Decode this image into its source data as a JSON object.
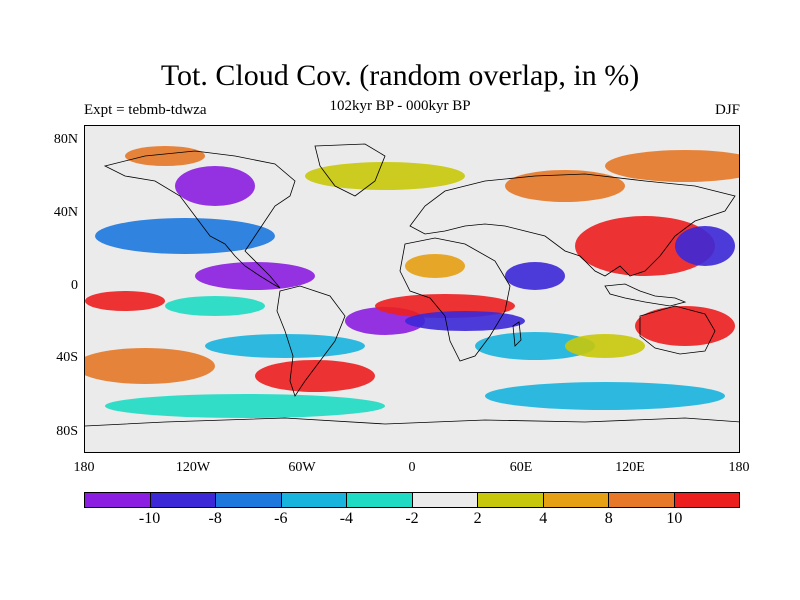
{
  "title": "Tot. Cloud Cov. (random overlap, in %)",
  "subtitle_left": "Expt = tebmb-tdwza",
  "subtitle_center": "102kyr BP - 000kyr BP",
  "subtitle_right": "DJF",
  "lat_labels": [
    "80N",
    "40N",
    "0",
    "40S",
    "80S"
  ],
  "lon_labels": [
    "180",
    "120W",
    "60W",
    "0",
    "60E",
    "120E",
    "180"
  ],
  "colorbar": {
    "colors": [
      "#8b1ee0",
      "#3c28d7",
      "#1c78dd",
      "#18b4de",
      "#1edcc3",
      "#ebebeb",
      "#c8c80a",
      "#e6a014",
      "#e67828",
      "#ec1e1e"
    ],
    "tick_labels": [
      "-10",
      "-8",
      "-6",
      "-4",
      "-2",
      "2",
      "4",
      "8",
      "10"
    ]
  },
  "map": {
    "projection": "cylindrical equidistant",
    "lon_range": [
      -180,
      180
    ],
    "lat_range": [
      -90,
      90
    ],
    "season": "DJF",
    "variable": "Total cloud cover difference (%)"
  }
}
